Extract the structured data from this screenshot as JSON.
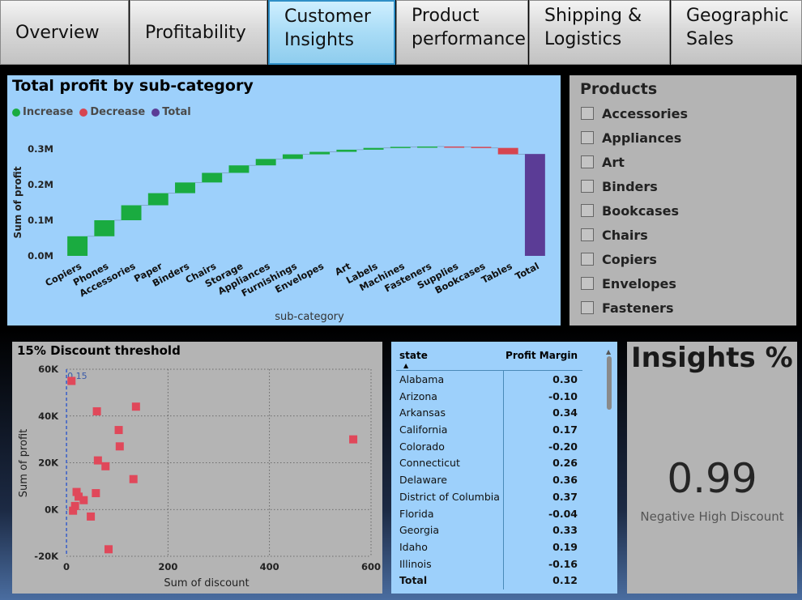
{
  "tabs": [
    {
      "line1": "Overview",
      "line2": ""
    },
    {
      "line1": "Profitability",
      "line2": ""
    },
    {
      "line1": "Customer",
      "line2": "Insights"
    },
    {
      "line1": "Product",
      "line2": "performance"
    },
    {
      "line1": "Shipping &",
      "line2": "Logistics"
    },
    {
      "line1": "Geographic",
      "line2": "Sales"
    }
  ],
  "active_tab": "Customer Insights",
  "chart_data": [
    {
      "type": "waterfall",
      "title": "Total profit by sub-category",
      "xlabel": "sub-category",
      "ylabel": "Sum of profit",
      "legend": [
        {
          "label": "Increase",
          "color": "#1aab40"
        },
        {
          "label": "Decrease",
          "color": "#d64550"
        },
        {
          "label": "Total",
          "color": "#5b3c96"
        }
      ],
      "legend_position": "top-left",
      "y_ticks": [
        "0.0M",
        "0.1M",
        "0.2M",
        "0.3M"
      ],
      "ylim": [
        0,
        0.3
      ],
      "categories": [
        "Copiers",
        "Phones",
        "Accessories",
        "Paper",
        "Binders",
        "Chairs",
        "Storage",
        "Appliances",
        "Furnishings",
        "Envelopes",
        "Art",
        "Labels",
        "Machines",
        "Fasteners",
        "Supplies",
        "Bookcases",
        "Tables",
        "Total"
      ],
      "values": [
        0.055,
        0.045,
        0.042,
        0.034,
        0.03,
        0.027,
        0.021,
        0.018,
        0.013,
        0.007,
        0.006,
        0.005,
        0.003,
        0.001,
        -0.001,
        -0.003,
        -0.018,
        0.286
      ],
      "grid": false
    },
    {
      "type": "scatter",
      "title": "15% Discount threshold",
      "xlabel": "Sum of discount",
      "ylabel": "Sum of profit",
      "x_ticks": [
        "0",
        "200",
        "400",
        "600"
      ],
      "y_ticks": [
        "-20K",
        "0K",
        "20K",
        "40K",
        "60K"
      ],
      "xlim": [
        0,
        600
      ],
      "ylim": [
        -20000,
        60000
      ],
      "threshold_label": "0.15",
      "threshold_x": 0.15,
      "grid": true,
      "color": "#e0485a",
      "points": [
        {
          "x": 10,
          "y": 55000
        },
        {
          "x": 60,
          "y": 42000
        },
        {
          "x": 137,
          "y": 44000
        },
        {
          "x": 103,
          "y": 34000
        },
        {
          "x": 105,
          "y": 27000
        },
        {
          "x": 62,
          "y": 21000
        },
        {
          "x": 77,
          "y": 18500
        },
        {
          "x": 132,
          "y": 13000
        },
        {
          "x": 20,
          "y": 7500
        },
        {
          "x": 24,
          "y": 5500
        },
        {
          "x": 58,
          "y": 7000
        },
        {
          "x": 34,
          "y": 4000
        },
        {
          "x": 17,
          "y": 1500
        },
        {
          "x": 13,
          "y": -500
        },
        {
          "x": 48,
          "y": -3000
        },
        {
          "x": 83,
          "y": -17000
        },
        {
          "x": 565,
          "y": 30000
        }
      ]
    },
    {
      "type": "table",
      "columns": [
        "state",
        "Profit Margin"
      ],
      "rows": [
        [
          "Alabama",
          "0.30"
        ],
        [
          "Arizona",
          "-0.10"
        ],
        [
          "Arkansas",
          "0.34"
        ],
        [
          "California",
          "0.17"
        ],
        [
          "Colorado",
          "-0.20"
        ],
        [
          "Connecticut",
          "0.26"
        ],
        [
          "Delaware",
          "0.36"
        ],
        [
          "District of Columbia",
          "0.37"
        ],
        [
          "Florida",
          "-0.04"
        ],
        [
          "Georgia",
          "0.33"
        ],
        [
          "Idaho",
          "0.19"
        ],
        [
          "Illinois",
          "-0.16"
        ]
      ],
      "total": [
        "Total",
        "0.12"
      ]
    }
  ],
  "products": {
    "title": "Products",
    "items": [
      "Accessories",
      "Appliances",
      "Art",
      "Binders",
      "Bookcases",
      "Chairs",
      "Copiers",
      "Envelopes",
      "Fasteners"
    ]
  },
  "insights": {
    "title": "Insights %",
    "value": "0.99",
    "label": "Negative High Discount"
  }
}
